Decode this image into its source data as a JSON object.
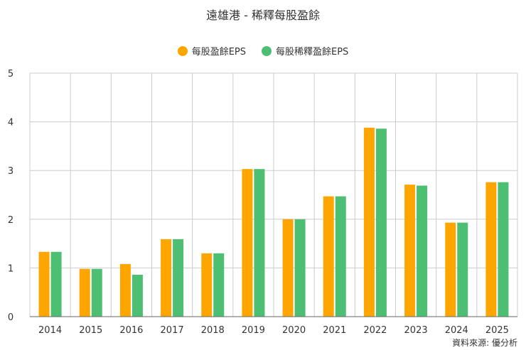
{
  "title": "遠雄港 - 稀釋每股盈餘",
  "source": "資料來源: 優分析",
  "colors": {
    "eps": "#FFA500",
    "diluted": "#4DBF73",
    "grid": "#cccccc",
    "axis": "#666666"
  },
  "chart_data": {
    "type": "bar",
    "title": "遠雄港 - 稀釋每股盈餘",
    "categories": [
      "2014",
      "2015",
      "2016",
      "2017",
      "2018",
      "2019",
      "2020",
      "2021",
      "2022",
      "2023",
      "2024",
      "2025"
    ],
    "series": [
      {
        "name": "每股盈餘EPS",
        "values": [
          1.33,
          0.98,
          1.08,
          1.59,
          1.3,
          3.03,
          2.0,
          2.47,
          3.88,
          2.71,
          1.93,
          2.76
        ]
      },
      {
        "name": "每股稀釋盈餘EPS",
        "values": [
          1.33,
          0.98,
          0.86,
          1.59,
          1.3,
          3.03,
          2.0,
          2.47,
          3.86,
          2.69,
          1.93,
          2.76
        ]
      }
    ],
    "ylim": [
      0,
      5
    ],
    "yticks": [
      0,
      1,
      2,
      3,
      4,
      5
    ],
    "grid": true,
    "legend": "top-center"
  }
}
